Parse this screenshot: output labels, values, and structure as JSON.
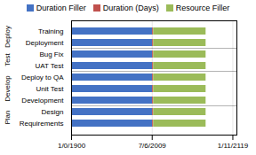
{
  "chart_data": {
    "type": "bar",
    "orientation": "horizontal",
    "stacked": true,
    "categories": [
      "Requirements",
      "Design",
      "Development",
      "Unit Test",
      "Deploy to QA",
      "UAT Test",
      "Bug Fix",
      "Deployment",
      "Training"
    ],
    "groups": [
      {
        "name": "Plan",
        "categories": [
          "Requirements",
          "Design"
        ]
      },
      {
        "name": "Develop",
        "categories": [
          "Development",
          "Unit Test",
          "Deploy to QA"
        ]
      },
      {
        "name": "Test",
        "categories": [
          "UAT Test",
          "Bug Fix"
        ]
      },
      {
        "name": "Deploy",
        "categories": [
          "Deployment",
          "Training"
        ]
      }
    ],
    "series": [
      {
        "name": "Duration Filler",
        "color": "#4472C4",
        "values": [
          40200,
          40200,
          40200,
          40200,
          40200,
          40200,
          40200,
          40200,
          40200
        ]
      },
      {
        "name": "Duration (Days)",
        "color": "#C0504D",
        "values": [
          500,
          500,
          500,
          500,
          500,
          500,
          500,
          500,
          500
        ]
      },
      {
        "name": "Resource Filler",
        "color": "#9BBB59",
        "values": [
          26000,
          26000,
          26000,
          26000,
          26000,
          26000,
          26000,
          26000,
          26000
        ]
      }
    ],
    "xlim": [
      0,
      82000
    ],
    "xticks": [
      {
        "value": 0,
        "label": "1/0/1900"
      },
      {
        "value": 39999,
        "label": "7/6/2009"
      },
      {
        "value": 80000,
        "label": "1/11/2119"
      }
    ],
    "grid": true,
    "legend": "top"
  }
}
